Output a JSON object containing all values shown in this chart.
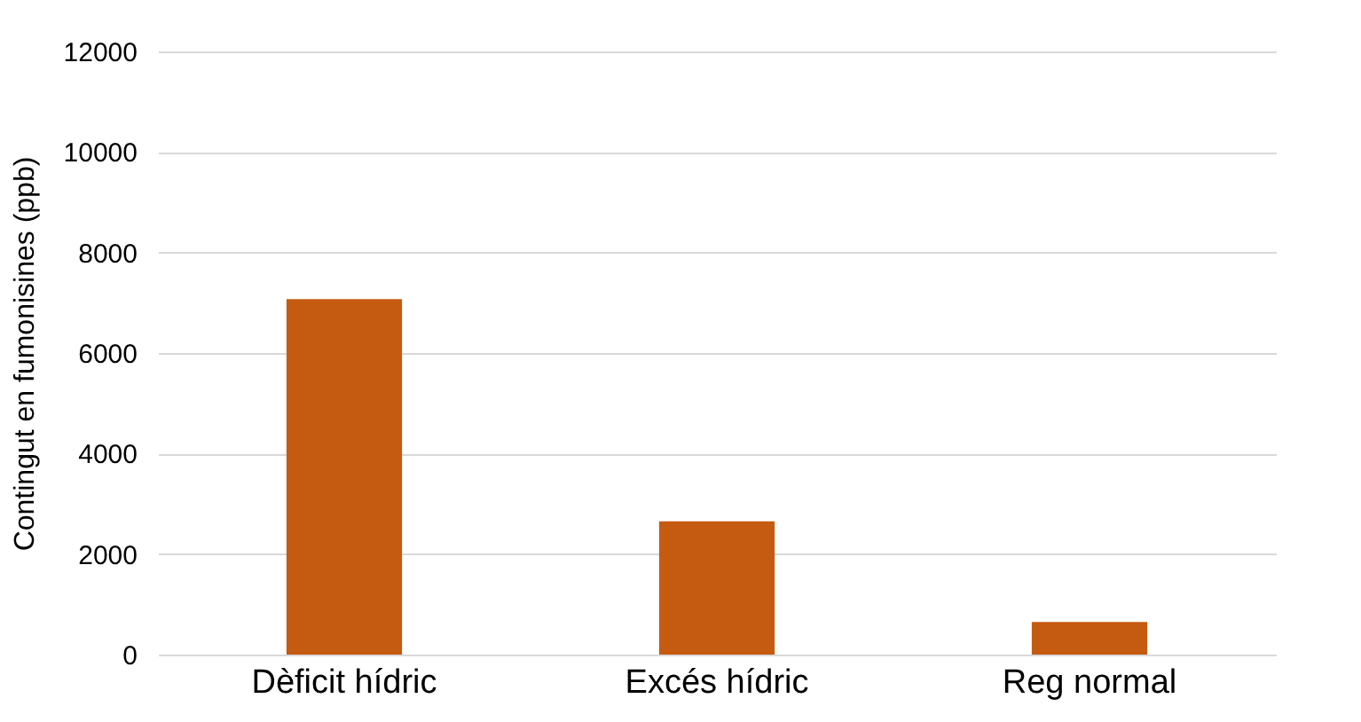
{
  "chart_data": {
    "type": "bar",
    "ylabel": "Contingut en fumonisines (ppb)",
    "categories": [
      "Dèficit hídric",
      "Excés hídric",
      "Reg normal"
    ],
    "values": [
      7070,
      2650,
      650
    ],
    "color": "#c55a11",
    "ylim": [
      0,
      12000
    ],
    "yticks": [
      0,
      2000,
      4000,
      6000,
      8000,
      10000,
      12000
    ],
    "grid": "y"
  }
}
